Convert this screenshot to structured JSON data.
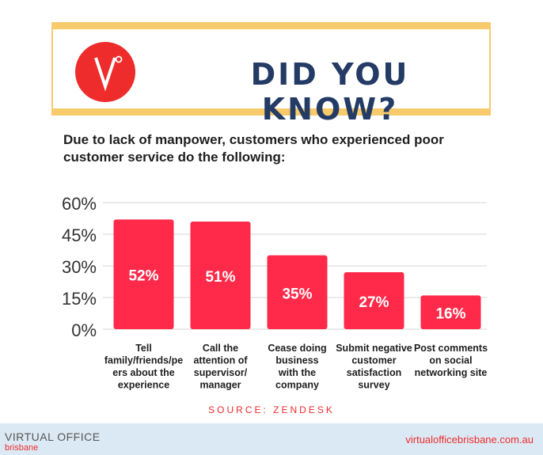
{
  "header": {
    "logo_letter": "V°",
    "headline": "DID YOU KNOW?"
  },
  "subtitle": "Due to lack of manpower, customers who experienced poor customer service do the following:",
  "chart_data": {
    "type": "bar",
    "categories": [
      [
        "Tell",
        "family/friends/pe",
        "ers about the",
        "experience"
      ],
      [
        "Call the",
        "attention of",
        "supervisor/",
        "manager"
      ],
      [
        "Cease doing",
        "business",
        "with the",
        "company"
      ],
      [
        "Submit negative",
        "customer",
        "satisfaction",
        "survey"
      ],
      [
        "Post comments",
        "on social",
        "networking site"
      ]
    ],
    "values": [
      52,
      51,
      35,
      27,
      16
    ],
    "data_labels": [
      "52%",
      "51%",
      "35%",
      "27%",
      "16%"
    ],
    "yticks": [
      "0%",
      "15%",
      "30%",
      "45%",
      "60%"
    ],
    "ylim": [
      0,
      60
    ],
    "grid": true,
    "bar_color": "#ff2a4a"
  },
  "source": "SOURCE: ZENDESK",
  "footer": {
    "logo_main": "VIRTUAL OFFICE",
    "logo_sub": "brisbane",
    "url": "virtualofficebrisbane.com.au"
  },
  "colors": {
    "accent_red": "#ee2c2c",
    "banner_gold": "#f7ca6b",
    "headline_navy": "#243b66",
    "footer_blue": "#dbe9f4"
  }
}
